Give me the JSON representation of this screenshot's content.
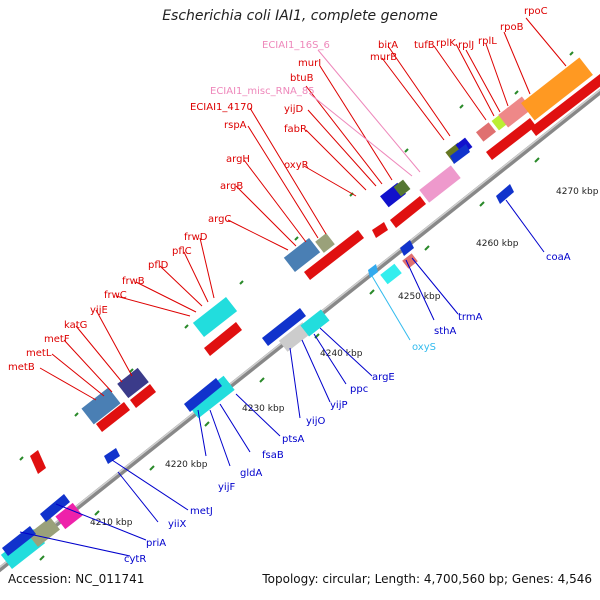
{
  "title": "Escherichia coli IAI1, complete genome",
  "footer": {
    "accession": "Accession: NC_011741",
    "summary": "Topology: circular; Length: 4,700,560 bp; Genes: 4,546"
  },
  "colors": {
    "forward_label": "#cc0000",
    "reverse_label": "#0000cc",
    "rna_label": "#ee88bb",
    "cyan_label": "#33bbee",
    "backbone": "#999999",
    "tick": "#228822"
  },
  "scale_labels": [
    "4210 kbp",
    "4220 kbp",
    "4230 kbp",
    "4240 kbp",
    "4250 kbp",
    "4260 kbp",
    "4270 kbp"
  ],
  "forward_genes": [
    "metB",
    "metL",
    "metF",
    "katG",
    "yijE",
    "frwC",
    "frwB",
    "pflD",
    "pflC",
    "frwD",
    "argC",
    "argB",
    "argH",
    "rspA",
    "ECIAI1_4170",
    "oxyR",
    "fabR",
    "yijD",
    "btuB",
    "murI",
    "murB",
    "birA",
    "tufB",
    "rplK",
    "rplJ",
    "rplL",
    "rpoB",
    "rpoC"
  ],
  "rna_genes": [
    "ECIAI1_16S_6",
    "ECIAI1_misc_RNA_85"
  ],
  "reverse_genes": [
    "cytR",
    "priA",
    "yiiX",
    "metJ",
    "yijF",
    "gldA",
    "fsaB",
    "ptsA",
    "yijO",
    "yijP",
    "ppc",
    "argE",
    "sthA",
    "trmA",
    "coaA"
  ],
  "cyan_genes": [
    "oxyS"
  ]
}
